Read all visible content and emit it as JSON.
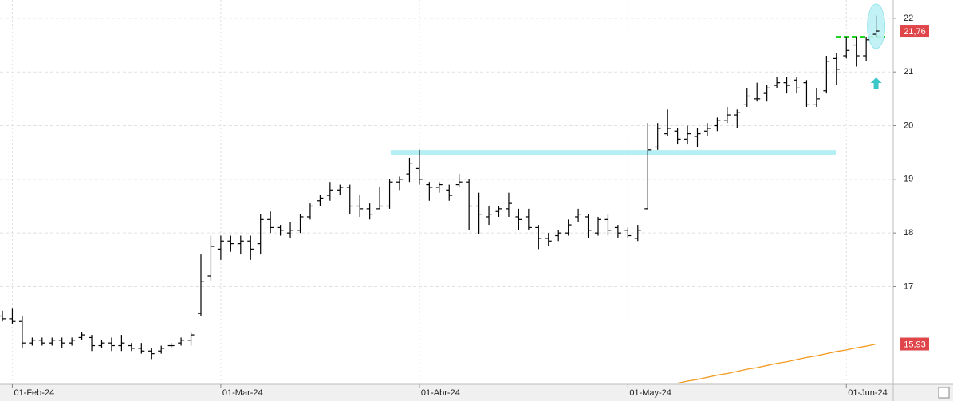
{
  "chart_data": {
    "type": "ohlc",
    "categories": [
      null,
      "01-Feb-24",
      null,
      null,
      null,
      null,
      null,
      null,
      null,
      null,
      null,
      null,
      null,
      null,
      null,
      null,
      null,
      null,
      null,
      null,
      null,
      null,
      "01-Mar-24",
      null,
      null,
      null,
      null,
      null,
      null,
      null,
      null,
      null,
      null,
      null,
      null,
      null,
      null,
      null,
      null,
      null,
      null,
      null,
      "01-Abr-24",
      null,
      null,
      null,
      null,
      null,
      null,
      null,
      null,
      null,
      null,
      null,
      null,
      null,
      null,
      null,
      null,
      null,
      null,
      null,
      null,
      "01-May-24",
      null,
      null,
      null,
      null,
      null,
      null,
      null,
      null,
      null,
      null,
      null,
      null,
      null,
      null,
      null,
      null,
      null,
      null,
      null,
      null,
      null,
      "01-Jun-24",
      null,
      null,
      null
    ],
    "ohlc": {
      "color": "#000000",
      "open": [
        16.45,
        16.4,
        16.35,
        15.95,
        16.0,
        15.95,
        16.0,
        15.95,
        16.05,
        16.05,
        15.9,
        15.95,
        15.9,
        15.9,
        15.85,
        15.8,
        15.8,
        15.9,
        15.95,
        16.0,
        16.5,
        17.2,
        17.7,
        17.85,
        17.8,
        17.85,
        17.8,
        18.25,
        18.1,
        18.0,
        18.05,
        18.3,
        18.6,
        18.7,
        18.8,
        18.85,
        18.5,
        18.45,
        18.45,
        18.5,
        18.95,
        19.1,
        19.2,
        18.9,
        18.85,
        18.8,
        18.9,
        18.95,
        18.5,
        18.3,
        18.4,
        18.45,
        18.3,
        18.3,
        18.1,
        17.9,
        17.95,
        18.0,
        18.3,
        18.3,
        18.0,
        18.25,
        18.1,
        18.05,
        17.9,
        18.45,
        19.6,
        19.85,
        19.9,
        19.75,
        19.8,
        19.9,
        20.0,
        20.1,
        20.2,
        20.4,
        20.5,
        20.6,
        20.75,
        20.8,
        20.85,
        20.8,
        20.4,
        20.65,
        21.25,
        21.3,
        21.5,
        21.3,
        21.7
      ],
      "high": [
        16.55,
        16.6,
        16.45,
        16.05,
        16.05,
        16.05,
        16.05,
        16.05,
        16.15,
        16.1,
        16.0,
        16.05,
        16.1,
        15.95,
        15.95,
        15.85,
        15.9,
        15.95,
        16.05,
        16.15,
        17.6,
        17.95,
        17.95,
        17.95,
        17.95,
        17.95,
        18.35,
        18.4,
        18.15,
        18.2,
        18.35,
        18.55,
        18.7,
        18.95,
        18.9,
        18.9,
        18.7,
        18.55,
        18.85,
        19.0,
        19.05,
        19.4,
        19.55,
        18.95,
        18.95,
        18.9,
        19.1,
        19.0,
        18.75,
        18.5,
        18.5,
        18.75,
        18.45,
        18.45,
        18.15,
        18.0,
        18.05,
        18.25,
        18.45,
        18.35,
        18.3,
        18.35,
        18.15,
        18.1,
        18.15,
        20.05,
        20.05,
        20.3,
        19.95,
        20.0,
        19.95,
        20.05,
        20.15,
        20.35,
        20.3,
        20.7,
        20.8,
        20.75,
        20.9,
        20.9,
        20.9,
        20.85,
        20.7,
        21.3,
        21.35,
        21.65,
        21.65,
        21.65,
        22.05
      ],
      "low": [
        16.35,
        16.3,
        15.85,
        15.9,
        15.9,
        15.9,
        15.85,
        15.9,
        16.0,
        15.8,
        15.85,
        15.8,
        15.8,
        15.8,
        15.75,
        15.65,
        15.75,
        15.85,
        15.9,
        15.9,
        16.45,
        17.1,
        17.5,
        17.65,
        17.6,
        17.5,
        17.6,
        18.0,
        17.95,
        17.9,
        18.0,
        18.25,
        18.5,
        18.6,
        18.7,
        18.35,
        18.3,
        18.25,
        18.45,
        18.45,
        18.8,
        18.95,
        18.9,
        18.6,
        18.75,
        18.6,
        18.85,
        18.05,
        17.98,
        18.15,
        18.3,
        18.3,
        18.05,
        18.05,
        17.7,
        17.75,
        17.85,
        17.95,
        18.2,
        17.9,
        17.95,
        17.95,
        17.9,
        17.9,
        17.85,
        18.45,
        19.55,
        19.8,
        19.65,
        19.65,
        19.6,
        19.8,
        19.9,
        20.05,
        19.95,
        20.35,
        20.45,
        20.45,
        20.7,
        20.6,
        20.6,
        20.35,
        20.35,
        20.6,
        20.75,
        21.25,
        21.1,
        21.2,
        21.65
      ],
      "close": [
        16.4,
        16.35,
        15.95,
        16.0,
        15.95,
        16.0,
        15.95,
        16.0,
        16.1,
        15.9,
        15.95,
        15.9,
        15.95,
        15.85,
        15.8,
        15.75,
        15.85,
        15.9,
        16.0,
        16.1,
        17.1,
        17.75,
        17.85,
        17.8,
        17.85,
        17.7,
        18.25,
        18.1,
        18.05,
        18.05,
        18.3,
        18.5,
        18.65,
        18.8,
        18.85,
        18.5,
        18.45,
        18.35,
        18.5,
        18.95,
        19.0,
        19.3,
        19.0,
        18.85,
        18.9,
        18.7,
        18.95,
        18.5,
        18.35,
        18.35,
        18.45,
        18.55,
        18.25,
        18.1,
        17.9,
        17.85,
        18.0,
        18.15,
        18.35,
        18.05,
        18.25,
        18.05,
        18.0,
        17.95,
        18.05,
        19.55,
        19.95,
        19.95,
        19.75,
        19.85,
        19.85,
        19.95,
        20.1,
        20.2,
        20.25,
        20.55,
        20.5,
        20.7,
        20.8,
        20.75,
        20.7,
        20.4,
        20.5,
        21.2,
        21.05,
        21.4,
        21.3,
        21.6,
        21.76
      ]
    },
    "moving_average": {
      "color": "#f29a1f",
      "values": [
        null,
        null,
        null,
        null,
        null,
        null,
        null,
        null,
        null,
        null,
        null,
        null,
        null,
        null,
        null,
        null,
        null,
        null,
        null,
        null,
        null,
        null,
        null,
        null,
        null,
        null,
        null,
        null,
        null,
        null,
        null,
        null,
        null,
        null,
        null,
        null,
        null,
        null,
        null,
        null,
        null,
        null,
        null,
        null,
        null,
        null,
        null,
        null,
        null,
        null,
        null,
        null,
        null,
        null,
        null,
        null,
        null,
        null,
        null,
        null,
        null,
        null,
        null,
        null,
        null,
        null,
        null,
        null,
        15.2,
        15.24,
        15.27,
        15.31,
        15.35,
        15.38,
        15.42,
        15.46,
        15.49,
        15.53,
        15.57,
        15.6,
        15.64,
        15.68,
        15.71,
        15.75,
        15.79,
        15.82,
        15.86,
        15.89,
        15.93
      ]
    },
    "price_markers": [
      {
        "value": 21.76,
        "label": "21,76",
        "color": "#e0454a"
      },
      {
        "value": 15.93,
        "label": "15,93",
        "color": "#e0454a"
      }
    ],
    "hlines": [
      {
        "value": 19.5,
        "color": "#a8eef2",
        "style": "solid"
      },
      {
        "value": 21.65,
        "color": "#22d322",
        "style": "dashed"
      }
    ],
    "ylim": [
      15.18,
      22.34
    ],
    "yticks": [
      17,
      18,
      19,
      20,
      21,
      22
    ],
    "grid": true
  }
}
